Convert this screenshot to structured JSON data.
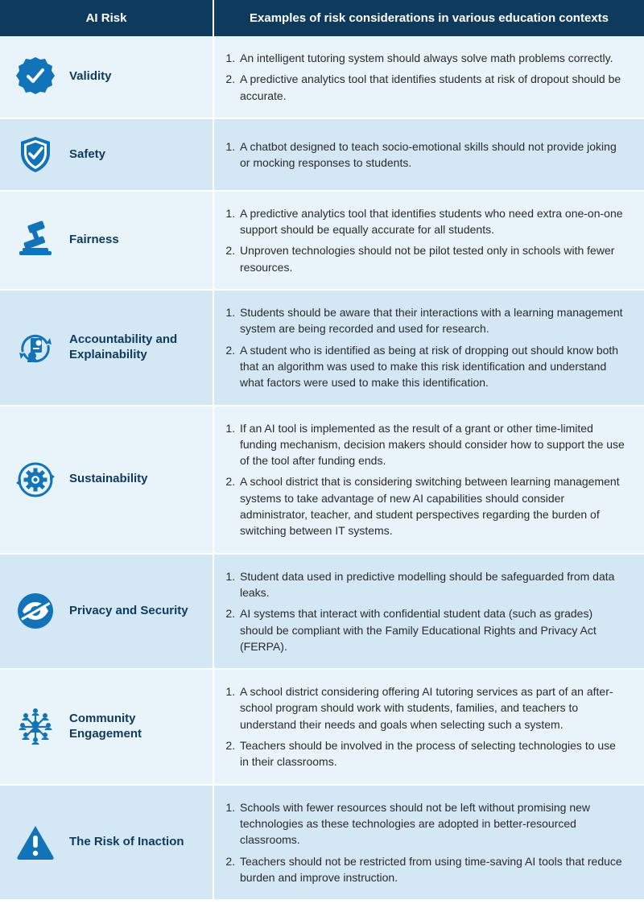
{
  "colors": {
    "header_bg": "#0e3a5d",
    "header_text": "#ffffff",
    "row_even_bg": "#e8f3fa",
    "row_odd_bg": "#d4e7f4",
    "icon_primary": "#1273b8",
    "label_color": "#0e3a5d",
    "body_text": "#2a2a2a",
    "divider": "#ffffff"
  },
  "header": {
    "risk": "AI Risk",
    "examples": "Examples of risk considerations in various education contexts"
  },
  "rows": [
    {
      "icon": "badge-check",
      "label": "Validity",
      "items": [
        "An intelligent tutoring system should always solve math problems correctly.",
        "A predictive analytics tool that identifies students at risk of dropout should be accurate."
      ]
    },
    {
      "icon": "shield-check",
      "label": "Safety",
      "items": [
        "A chatbot designed to teach socio-emotional skills should not provide joking or mocking responses to students."
      ]
    },
    {
      "icon": "gavel",
      "label": "Fairness",
      "items": [
        "A predictive analytics tool that identifies students who need extra one-on-one support should be equally accurate for all students.",
        "Unproven technologies should not be pilot tested only in schools with fewer resources."
      ]
    },
    {
      "icon": "doc-cycle",
      "label": "Accountability and Explainability",
      "items": [
        "Students should be aware that their interactions with a learning management system are being recorded and used for research.",
        "A student who is identified as being at risk of dropping out should know both that an algorithm was used to make this risk identification and understand what factors were used to make this identification."
      ]
    },
    {
      "icon": "gear-cycle",
      "label": "Sustainability",
      "items": [
        "If an AI tool is implemented as the result of a grant or other time-limited funding mechanism, decision makers should consider how to support the use of the tool after funding ends.",
        "A school district that is considering switching between learning management systems to take advantage of new AI capabilities should consider administrator, teacher, and student perspectives regarding the burden of switching between IT systems."
      ]
    },
    {
      "icon": "eye-slash",
      "label": "Privacy and Security",
      "items": [
        "Student data used in predictive modelling should be safeguarded from data leaks.",
        "AI systems that interact with confidential student data (such as grades) should be compliant with the Family Educational Rights and Privacy Act (FERPA)."
      ]
    },
    {
      "icon": "people-network",
      "label": "Community Engagement",
      "items": [
        "A school district considering offering AI tutoring services as part of an after-school program should work with students, families, and teachers to understand their needs and goals when selecting such a system.",
        "Teachers should be involved in the process of selecting technologies to use in their classrooms."
      ]
    },
    {
      "icon": "warning",
      "label": "The Risk of Inaction",
      "items": [
        "Schools with fewer resources should not be left without promising new technologies as these technologies are adopted in better-resourced classrooms.",
        "Teachers should not be restricted from using time-saving AI tools that reduce burden and improve instruction."
      ]
    }
  ]
}
